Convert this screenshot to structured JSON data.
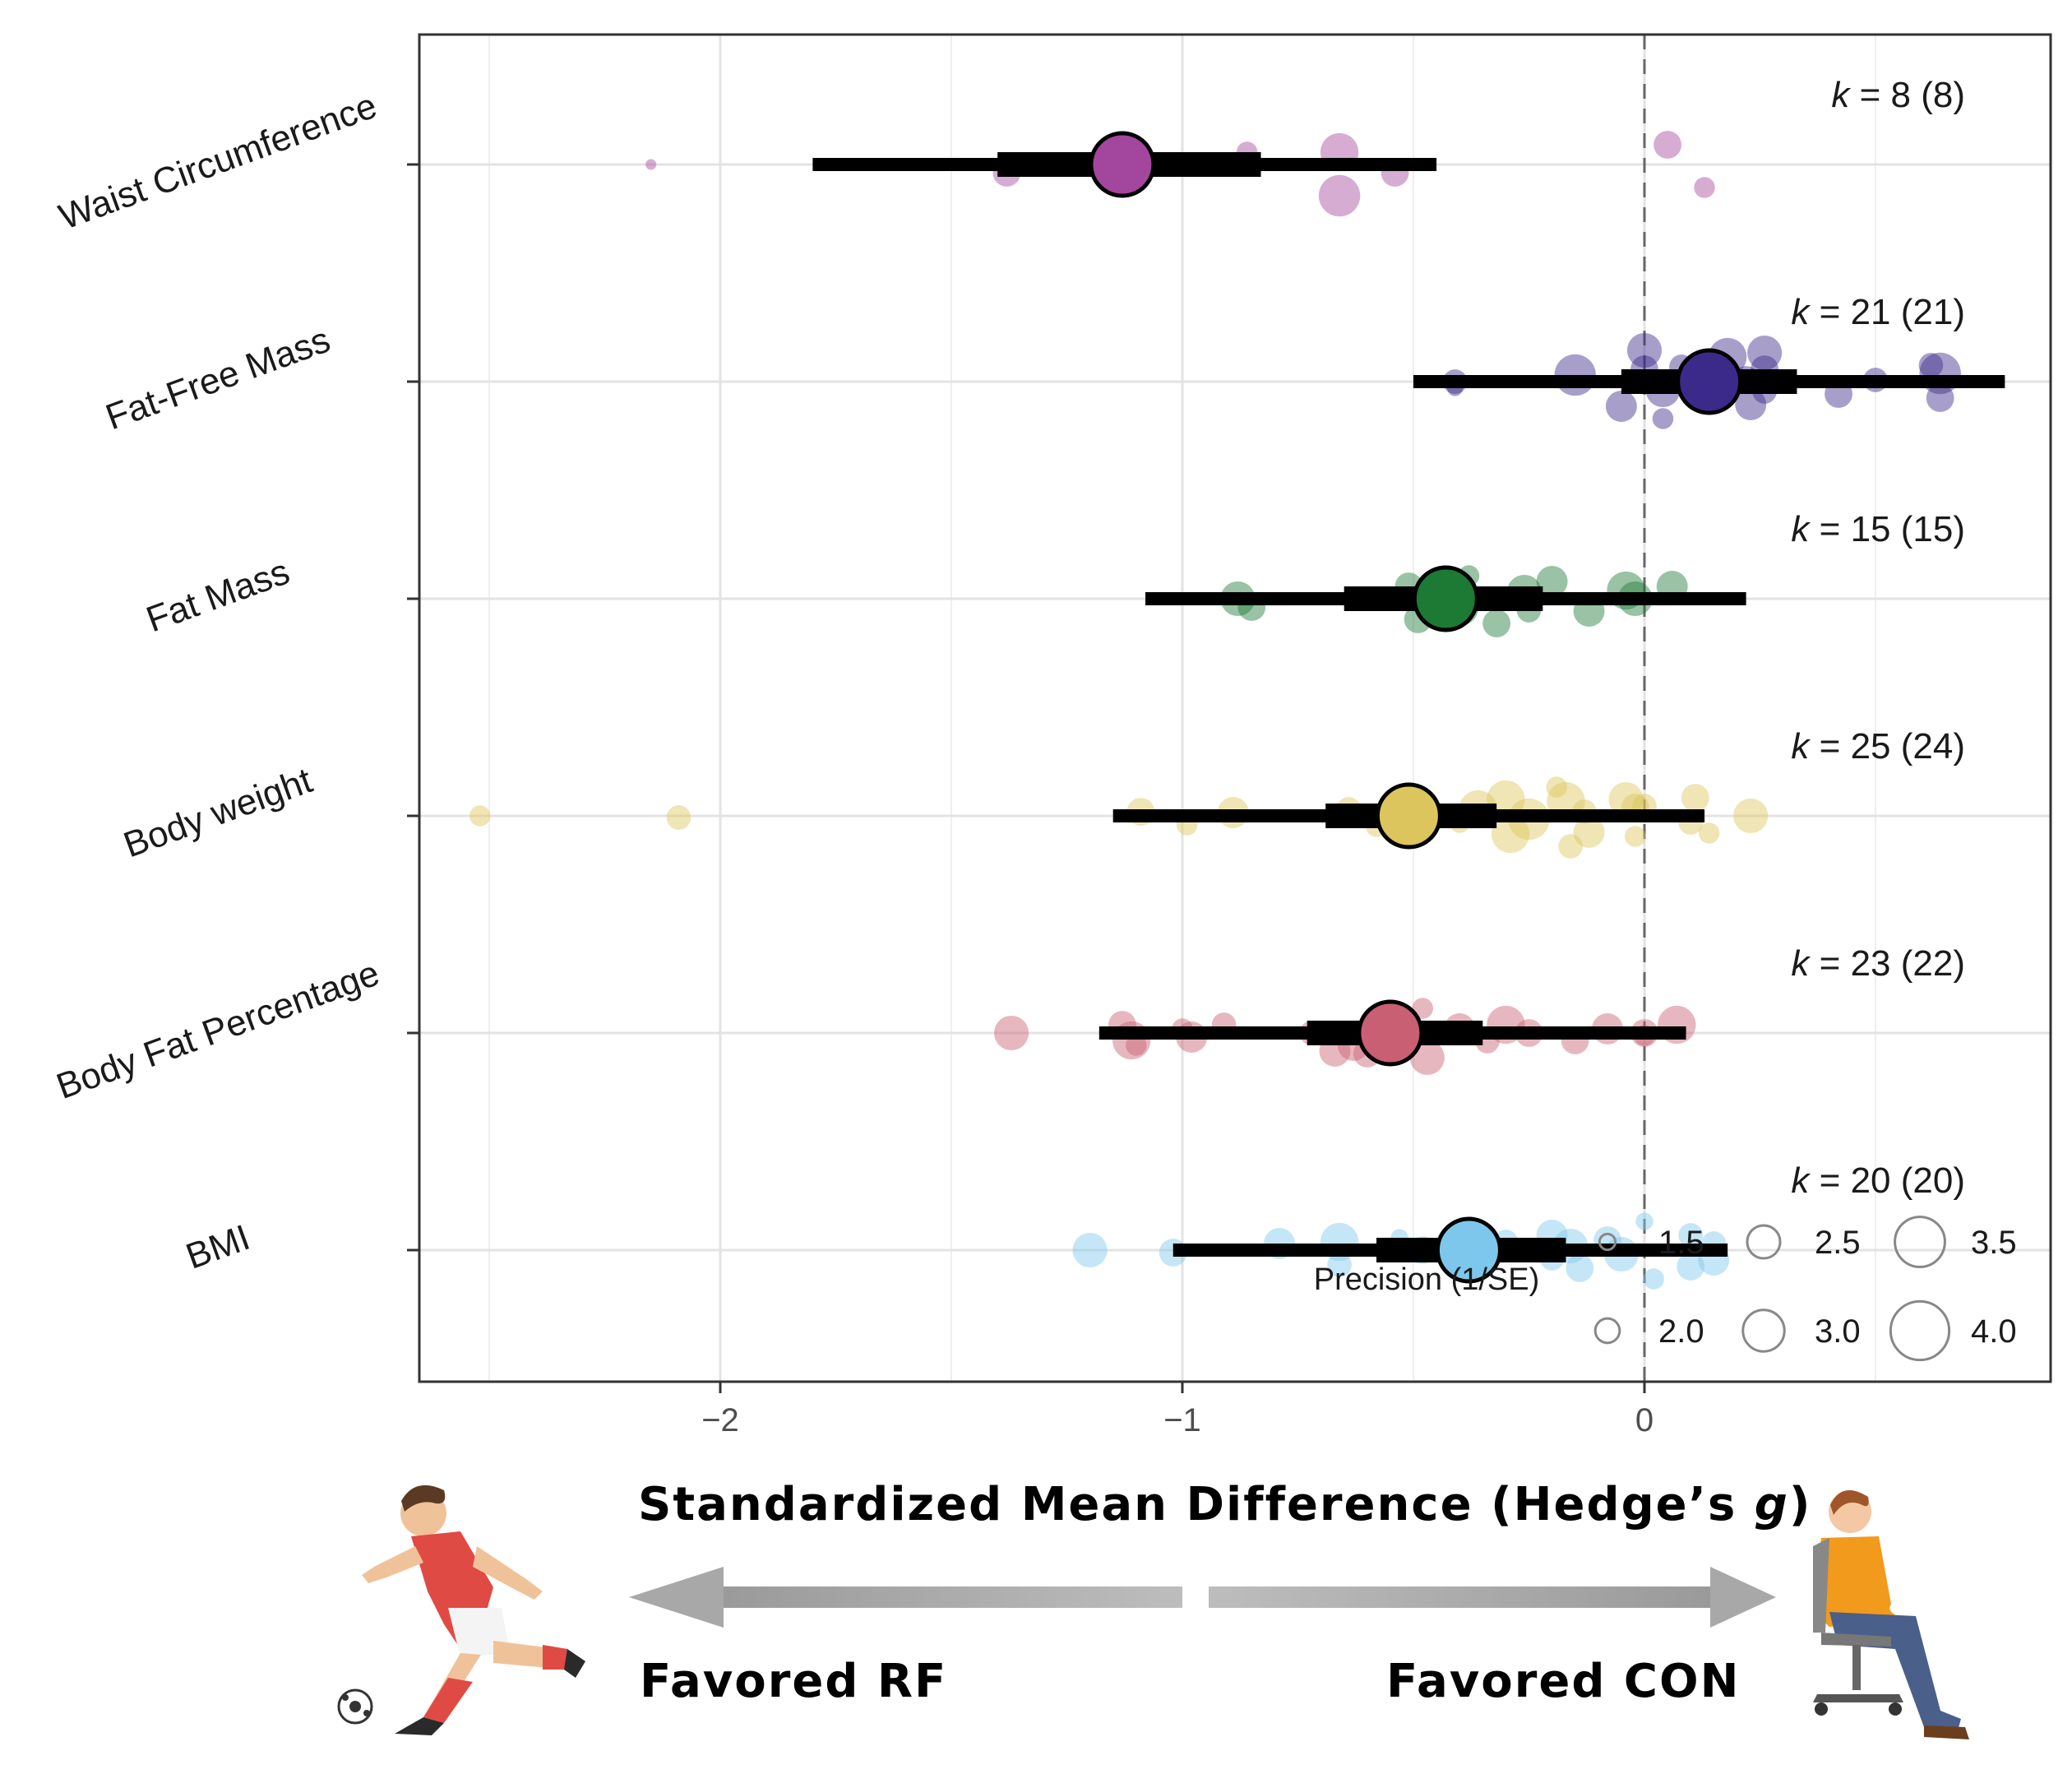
{
  "chart_data": {
    "type": "scatter",
    "subtype": "orchard-forest-plot",
    "xlabel": "Standardized Mean Difference (Hedge’s ",
    "xlabel_italic": "g",
    "xlabel_close": ")",
    "xlim": [
      -2.67,
      0.86
    ],
    "x_ticks": [
      -2,
      -1,
      0
    ],
    "x_tick_labels": [
      "−2",
      "−1",
      "0"
    ],
    "reference_line_x": 0,
    "categories": [
      {
        "name": "Waist Circumference",
        "color": "#a3469e",
        "k_label": "= 8 (8)",
        "estimate": -1.13,
        "ci": [
          -1.4,
          -0.83
        ],
        "pi": [
          -1.8,
          -0.45
        ],
        "points": [
          {
            "x": -2.15,
            "jitter": 0.0,
            "precision": 1.2
          },
          {
            "x": -1.38,
            "jitter": -0.1,
            "precision": 2.2
          },
          {
            "x": -0.86,
            "jitter": 0.15,
            "precision": 1.8
          },
          {
            "x": -0.66,
            "jitter": 0.15,
            "precision": 2.8
          },
          {
            "x": -0.66,
            "jitter": -0.38,
            "precision": 3.0
          },
          {
            "x": -0.54,
            "jitter": -0.1,
            "precision": 2.2
          },
          {
            "x": 0.05,
            "jitter": 0.24,
            "precision": 2.2
          },
          {
            "x": 0.13,
            "jitter": -0.28,
            "precision": 1.8
          }
        ]
      },
      {
        "name": "Fat-Free Mass",
        "color": "#3c2a8a",
        "k_label": "= 21 (21)",
        "estimate": 0.14,
        "ci": [
          -0.05,
          0.33
        ],
        "pi": [
          -0.5,
          0.78
        ],
        "points": [
          {
            "x": -0.41,
            "jitter": 0.0,
            "precision": 2.0
          },
          {
            "x": -0.41,
            "jitter": -0.08,
            "precision": 1.5
          },
          {
            "x": -0.15,
            "jitter": 0.08,
            "precision": 3.0
          },
          {
            "x": -0.05,
            "jitter": -0.3,
            "precision": 2.4
          },
          {
            "x": 0.0,
            "jitter": 0.38,
            "precision": 2.6
          },
          {
            "x": 0.0,
            "jitter": 0.15,
            "precision": 2.2
          },
          {
            "x": 0.04,
            "jitter": -0.1,
            "precision": 2.6
          },
          {
            "x": 0.04,
            "jitter": -0.45,
            "precision": 1.8
          },
          {
            "x": 0.08,
            "jitter": 0.18,
            "precision": 2.0
          },
          {
            "x": 0.12,
            "jitter": -0.1,
            "precision": 2.4
          },
          {
            "x": 0.18,
            "jitter": 0.3,
            "precision": 2.8
          },
          {
            "x": 0.22,
            "jitter": 0.02,
            "precision": 2.2
          },
          {
            "x": 0.23,
            "jitter": -0.28,
            "precision": 2.4
          },
          {
            "x": 0.26,
            "jitter": 0.15,
            "precision": 2.2
          },
          {
            "x": 0.26,
            "jitter": -0.12,
            "precision": 2.0
          },
          {
            "x": 0.26,
            "jitter": 0.35,
            "precision": 2.6
          },
          {
            "x": 0.42,
            "jitter": -0.15,
            "precision": 2.2
          },
          {
            "x": 0.5,
            "jitter": 0.02,
            "precision": 2.0
          },
          {
            "x": 0.62,
            "jitter": 0.2,
            "precision": 2.0
          },
          {
            "x": 0.64,
            "jitter": -0.2,
            "precision": 2.2
          },
          {
            "x": 0.64,
            "jitter": 0.1,
            "precision": 3.0
          }
        ]
      },
      {
        "name": "Fat Mass",
        "color": "#1c7a35",
        "k_label": "= 15 (15)",
        "estimate": -0.43,
        "ci": [
          -0.65,
          -0.22
        ],
        "pi": [
          -1.08,
          0.22
        ],
        "points": [
          {
            "x": -0.88,
            "jitter": 0.0,
            "precision": 2.6
          },
          {
            "x": -0.85,
            "jitter": -0.1,
            "precision": 2.2
          },
          {
            "x": -0.51,
            "jitter": 0.15,
            "precision": 2.2
          },
          {
            "x": -0.49,
            "jitter": -0.25,
            "precision": 2.2
          },
          {
            "x": -0.44,
            "jitter": 0.0,
            "precision": 2.6
          },
          {
            "x": -0.4,
            "jitter": -0.1,
            "precision": 2.8
          },
          {
            "x": -0.38,
            "jitter": 0.28,
            "precision": 1.8
          },
          {
            "x": -0.32,
            "jitter": -0.3,
            "precision": 2.2
          },
          {
            "x": -0.26,
            "jitter": 0.08,
            "precision": 2.6
          },
          {
            "x": -0.25,
            "jitter": -0.14,
            "precision": 2.0
          },
          {
            "x": -0.2,
            "jitter": 0.21,
            "precision": 2.4
          },
          {
            "x": -0.12,
            "jitter": -0.15,
            "precision": 2.4
          },
          {
            "x": -0.04,
            "jitter": 0.1,
            "precision": 2.8
          },
          {
            "x": -0.02,
            "jitter": 0.0,
            "precision": 2.6
          },
          {
            "x": 0.06,
            "jitter": 0.15,
            "precision": 2.4
          }
        ]
      },
      {
        "name": "Body weight",
        "color": "#dcc55c",
        "k_label": "= 25 (24)",
        "estimate": -0.51,
        "ci": [
          -0.69,
          -0.32
        ],
        "pi": [
          -1.15,
          0.13
        ],
        "points": [
          {
            "x": -2.52,
            "jitter": 0.0,
            "precision": 1.8
          },
          {
            "x": -2.09,
            "jitter": -0.02,
            "precision": 2.0
          },
          {
            "x": -1.09,
            "jitter": 0.05,
            "precision": 2.2
          },
          {
            "x": -0.99,
            "jitter": -0.11,
            "precision": 1.8
          },
          {
            "x": -0.89,
            "jitter": 0.04,
            "precision": 2.4
          },
          {
            "x": -0.64,
            "jitter": 0.08,
            "precision": 2.0
          },
          {
            "x": -0.58,
            "jitter": -0.13,
            "precision": 1.8
          },
          {
            "x": -0.4,
            "jitter": -0.08,
            "precision": 1.8
          },
          {
            "x": -0.36,
            "jitter": 0.08,
            "precision": 2.8
          },
          {
            "x": -0.3,
            "jitter": 0.2,
            "precision": 2.8
          },
          {
            "x": -0.29,
            "jitter": -0.22,
            "precision": 2.8
          },
          {
            "x": -0.25,
            "jitter": -0.04,
            "precision": 3.0
          },
          {
            "x": -0.19,
            "jitter": 0.35,
            "precision": 1.8
          },
          {
            "x": -0.17,
            "jitter": 0.18,
            "precision": 2.8
          },
          {
            "x": -0.16,
            "jitter": -0.37,
            "precision": 2.0
          },
          {
            "x": -0.13,
            "jitter": 0.05,
            "precision": 2.0
          },
          {
            "x": -0.12,
            "jitter": -0.2,
            "precision": 2.4
          },
          {
            "x": -0.04,
            "jitter": 0.2,
            "precision": 2.6
          },
          {
            "x": -0.02,
            "jitter": 0.1,
            "precision": 2.2
          },
          {
            "x": -0.02,
            "jitter": -0.25,
            "precision": 1.8
          },
          {
            "x": 0.0,
            "jitter": 0.12,
            "precision": 2.0
          },
          {
            "x": 0.1,
            "jitter": -0.08,
            "precision": 2.0
          },
          {
            "x": 0.11,
            "jitter": 0.22,
            "precision": 2.2
          },
          {
            "x": 0.14,
            "jitter": -0.21,
            "precision": 1.8
          },
          {
            "x": 0.23,
            "jitter": 0.0,
            "precision": 2.6
          }
        ]
      },
      {
        "name": "Body Fat Percentage",
        "color": "#c95f72",
        "k_label": "= 23 (22)",
        "estimate": -0.55,
        "ci": [
          -0.73,
          -0.35
        ],
        "pi": [
          -1.18,
          0.09
        ],
        "points": [
          {
            "x": -1.37,
            "jitter": 0.0,
            "precision": 2.6
          },
          {
            "x": -1.13,
            "jitter": 0.1,
            "precision": 2.2
          },
          {
            "x": -1.11,
            "jitter": -0.09,
            "precision": 2.8
          },
          {
            "x": -1.1,
            "jitter": -0.15,
            "precision": 1.8
          },
          {
            "x": -1.0,
            "jitter": 0.05,
            "precision": 1.8
          },
          {
            "x": -0.98,
            "jitter": -0.05,
            "precision": 2.4
          },
          {
            "x": -0.91,
            "jitter": 0.1,
            "precision": 2.0
          },
          {
            "x": -0.72,
            "jitter": 0.0,
            "precision": 2.0
          },
          {
            "x": -0.67,
            "jitter": -0.22,
            "precision": 2.4
          },
          {
            "x": -0.63,
            "jitter": -0.15,
            "precision": 2.4
          },
          {
            "x": -0.6,
            "jitter": -0.25,
            "precision": 2.2
          },
          {
            "x": -0.55,
            "jitter": 0.1,
            "precision": 1.8
          },
          {
            "x": -0.48,
            "jitter": 0.3,
            "precision": 1.8
          },
          {
            "x": -0.47,
            "jitter": -0.3,
            "precision": 2.6
          },
          {
            "x": -0.4,
            "jitter": 0.05,
            "precision": 2.4
          },
          {
            "x": -0.34,
            "jitter": -0.1,
            "precision": 2.0
          },
          {
            "x": -0.3,
            "jitter": 0.1,
            "precision": 2.8
          },
          {
            "x": -0.25,
            "jitter": 0.0,
            "precision": 2.2
          },
          {
            "x": -0.15,
            "jitter": -0.09,
            "precision": 2.2
          },
          {
            "x": -0.08,
            "jitter": 0.05,
            "precision": 2.4
          },
          {
            "x": 0.0,
            "jitter": 0.0,
            "precision": 2.2
          },
          {
            "x": 0.0,
            "jitter": -0.03,
            "precision": 1.8
          },
          {
            "x": 0.07,
            "jitter": 0.1,
            "precision": 2.8
          }
        ]
      },
      {
        "name": "BMI",
        "color": "#7ec7ec",
        "k_label": "= 20 (20)",
        "estimate": -0.38,
        "ci": [
          -0.58,
          -0.17
        ],
        "pi": [
          -1.02,
          0.18
        ],
        "points": [
          {
            "x": -1.2,
            "jitter": 0.0,
            "precision": 2.6
          },
          {
            "x": -1.02,
            "jitter": -0.03,
            "precision": 2.2
          },
          {
            "x": -0.79,
            "jitter": 0.08,
            "precision": 2.4
          },
          {
            "x": -0.66,
            "jitter": 0.1,
            "precision": 2.8
          },
          {
            "x": -0.66,
            "jitter": -0.18,
            "precision": 2.0
          },
          {
            "x": -0.53,
            "jitter": 0.15,
            "precision": 1.6
          },
          {
            "x": -0.48,
            "jitter": 0.0,
            "precision": 2.2
          },
          {
            "x": -0.3,
            "jitter": 0.1,
            "precision": 2.0
          },
          {
            "x": -0.2,
            "jitter": 0.18,
            "precision": 2.4
          },
          {
            "x": -0.2,
            "jitter": -0.1,
            "precision": 2.0
          },
          {
            "x": -0.16,
            "jitter": 0.05,
            "precision": 2.6
          },
          {
            "x": -0.14,
            "jitter": -0.22,
            "precision": 2.2
          },
          {
            "x": -0.08,
            "jitter": 0.12,
            "precision": 2.2
          },
          {
            "x": -0.05,
            "jitter": -0.05,
            "precision": 2.6
          },
          {
            "x": 0.0,
            "jitter": 0.35,
            "precision": 1.6
          },
          {
            "x": 0.02,
            "jitter": -0.35,
            "precision": 1.8
          },
          {
            "x": 0.1,
            "jitter": 0.18,
            "precision": 2.0
          },
          {
            "x": 0.1,
            "jitter": -0.2,
            "precision": 2.2
          },
          {
            "x": 0.15,
            "jitter": -0.12,
            "precision": 2.4
          },
          {
            "x": 0.15,
            "jitter": 0.08,
            "precision": 2.0
          }
        ]
      }
    ],
    "legend": {
      "title": "Precision (1/SE)",
      "position": "bottom-right inside",
      "entries": [
        {
          "label": "1.5",
          "precision": 1.5
        },
        {
          "label": "2.0",
          "precision": 2.0
        },
        {
          "label": "2.5",
          "precision": 2.5
        },
        {
          "label": "3.0",
          "precision": 3.0
        },
        {
          "label": "3.5",
          "precision": 3.5
        },
        {
          "label": "4.0",
          "precision": 4.0
        }
      ]
    },
    "annotations": {
      "favored_left": "Favored RF",
      "favored_right": "Favored CON"
    }
  }
}
